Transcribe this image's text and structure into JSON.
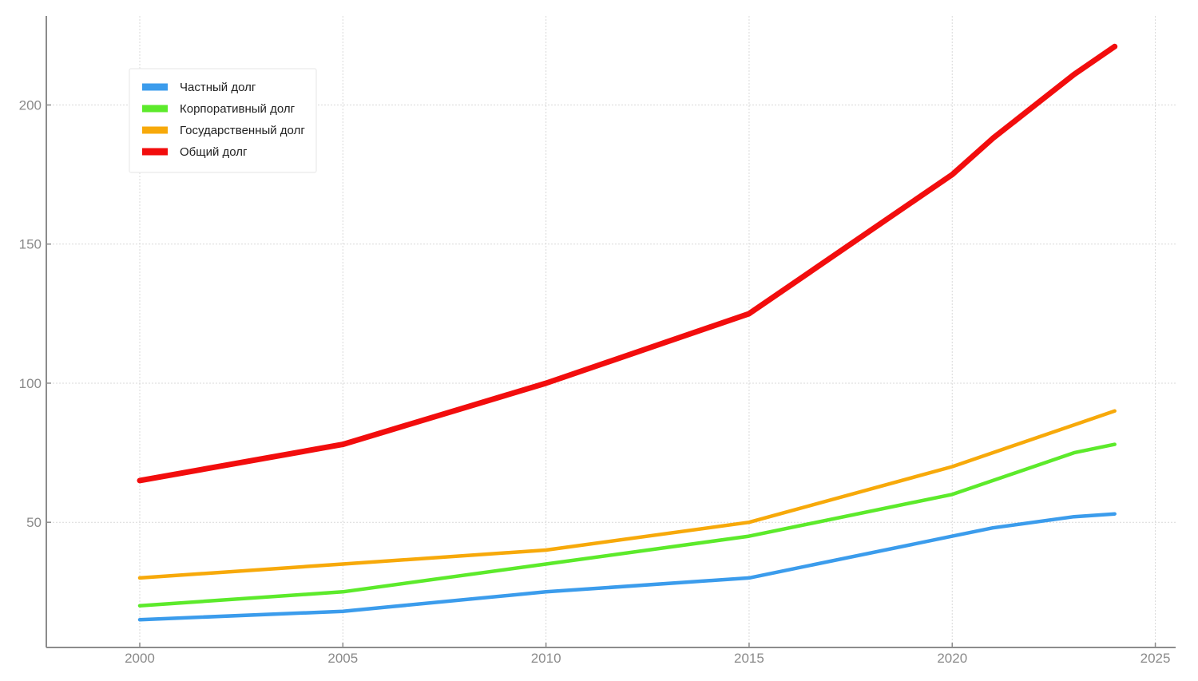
{
  "chart_data": {
    "type": "line",
    "title": "",
    "xlabel": "",
    "ylabel": "",
    "xlim": [
      1997.7,
      2025.5
    ],
    "ylim": [
      5,
      232
    ],
    "xticks": [
      2000,
      2005,
      2010,
      2015,
      2020,
      2025
    ],
    "yticks": [
      50,
      100,
      150,
      200
    ],
    "grid": true,
    "legend_position": "top-left",
    "series": [
      {
        "name": "Частный долг",
        "color": "#3b9cec",
        "x": [
          2000,
          2005,
          2010,
          2015,
          2020,
          2021,
          2023,
          2024
        ],
        "values": [
          15,
          18,
          25,
          30,
          45,
          48,
          52,
          53
        ]
      },
      {
        "name": "Корпоративный долг",
        "color": "#5cea2b",
        "x": [
          2000,
          2005,
          2010,
          2015,
          2020,
          2023,
          2024
        ],
        "values": [
          20,
          25,
          35,
          45,
          60,
          75,
          78
        ]
      },
      {
        "name": "Государственный долг",
        "color": "#f7a90a",
        "x": [
          2000,
          2005,
          2010,
          2015,
          2020,
          2023,
          2024
        ],
        "values": [
          30,
          35,
          40,
          50,
          70,
          85,
          90
        ]
      },
      {
        "name": "Общий долг",
        "color": "#f20d0d",
        "x": [
          2000,
          2005,
          2010,
          2015,
          2020,
          2021,
          2023,
          2024
        ],
        "values": [
          65,
          78,
          100,
          125,
          175,
          188,
          211,
          221
        ]
      }
    ]
  }
}
